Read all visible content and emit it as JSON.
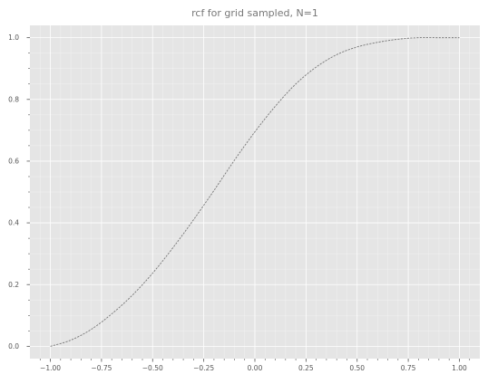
{
  "chart_data": {
    "type": "line",
    "title": "rcf for grid sampled, N=1",
    "xlabel": "",
    "ylabel": "",
    "xlim": [
      -1.1,
      1.1
    ],
    "ylim": [
      -0.04,
      1.04
    ],
    "x_ticks": [
      -1.0,
      -0.75,
      -0.5,
      -0.25,
      0.0,
      0.25,
      0.5,
      0.75,
      1.0
    ],
    "x_tick_labels": [
      "−1.00",
      "−0.75",
      "−0.50",
      "−0.25",
      "0.00",
      "0.25",
      "0.50",
      "0.75",
      "1.00"
    ],
    "x_minor_ticks": [
      -1.05,
      -0.95,
      -0.9,
      -0.85,
      -0.8,
      -0.7,
      -0.65,
      -0.6,
      -0.55,
      -0.45,
      -0.4,
      -0.35,
      -0.3,
      -0.2,
      -0.15,
      -0.1,
      -0.05,
      0.05,
      0.1,
      0.15,
      0.2,
      0.3,
      0.35,
      0.4,
      0.45,
      0.55,
      0.6,
      0.65,
      0.7,
      0.8,
      0.85,
      0.9,
      0.95,
      1.05
    ],
    "y_ticks": [
      0.0,
      0.2,
      0.4,
      0.6,
      0.8,
      1.0
    ],
    "y_tick_labels": [
      "0.0",
      "0.2",
      "0.4",
      "0.6",
      "0.8",
      "1.0"
    ],
    "y_minor_ticks": [
      0.05,
      0.1,
      0.15,
      0.25,
      0.3,
      0.35,
      0.45,
      0.5,
      0.55,
      0.65,
      0.7,
      0.75,
      0.85,
      0.9,
      0.95
    ],
    "grid": true,
    "style": "ggplot",
    "colors": {
      "background": "#e5e5e5",
      "grid": "#ffffff",
      "line": "#777777",
      "text": "#555555",
      "title": "#777777"
    },
    "series": [
      {
        "line_style": "dashed",
        "x": [
          -1.0,
          -0.9,
          -0.8,
          -0.7,
          -0.6,
          -0.5,
          -0.4,
          -0.3,
          -0.2,
          -0.1,
          0.0,
          0.1,
          0.2,
          0.3,
          0.4,
          0.5,
          0.6,
          0.7,
          0.8,
          0.9,
          1.0
        ],
        "y": [
          0.0,
          0.02,
          0.055,
          0.105,
          0.165,
          0.237,
          0.32,
          0.41,
          0.505,
          0.603,
          0.695,
          0.778,
          0.85,
          0.905,
          0.945,
          0.97,
          0.985,
          0.995,
          1.0,
          1.0,
          1.0
        ]
      }
    ]
  }
}
